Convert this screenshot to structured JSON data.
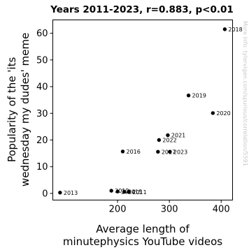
{
  "chart_data": {
    "type": "scatter",
    "title": "Years 2011-2023, r=0.883, p<0.01",
    "xlabel": [
      "Average length of",
      "minutephysics YouTube videos"
    ],
    "ylabel": [
      "Popularity of the 'its",
      "wednesday my dudes' meme"
    ],
    "xlim": [
      75,
      422
    ],
    "ylim": [
      -2.5,
      65
    ],
    "xticks": [
      200,
      300,
      400
    ],
    "yticks": [
      0,
      10,
      20,
      30,
      40,
      50,
      60
    ],
    "grid": false,
    "marker_color": "#000000",
    "points": [
      {
        "label": "2011",
        "x": 222,
        "y": 0.5
      },
      {
        "label": "2012",
        "x": 188,
        "y": 1.0
      },
      {
        "label": "2013",
        "x": 89,
        "y": 0.3
      },
      {
        "label": "2014",
        "x": 200,
        "y": 0.7
      },
      {
        "label": "2015",
        "x": 213,
        "y": 0.6
      },
      {
        "label": "2016",
        "x": 210,
        "y": 15.7
      },
      {
        "label": "2017",
        "x": 278,
        "y": 15.6
      },
      {
        "label": "2018",
        "x": 407,
        "y": 61.5
      },
      {
        "label": "2019",
        "x": 337,
        "y": 36.7
      },
      {
        "label": "2020",
        "x": 384,
        "y": 30.1
      },
      {
        "label": "2021",
        "x": 297,
        "y": 21.8
      },
      {
        "label": "2022",
        "x": 280,
        "y": 20.0
      },
      {
        "label": "2023",
        "x": 301,
        "y": 15.6
      }
    ]
  },
  "watermark": "More info: tylervigen.com/spurious/correlation/5591"
}
